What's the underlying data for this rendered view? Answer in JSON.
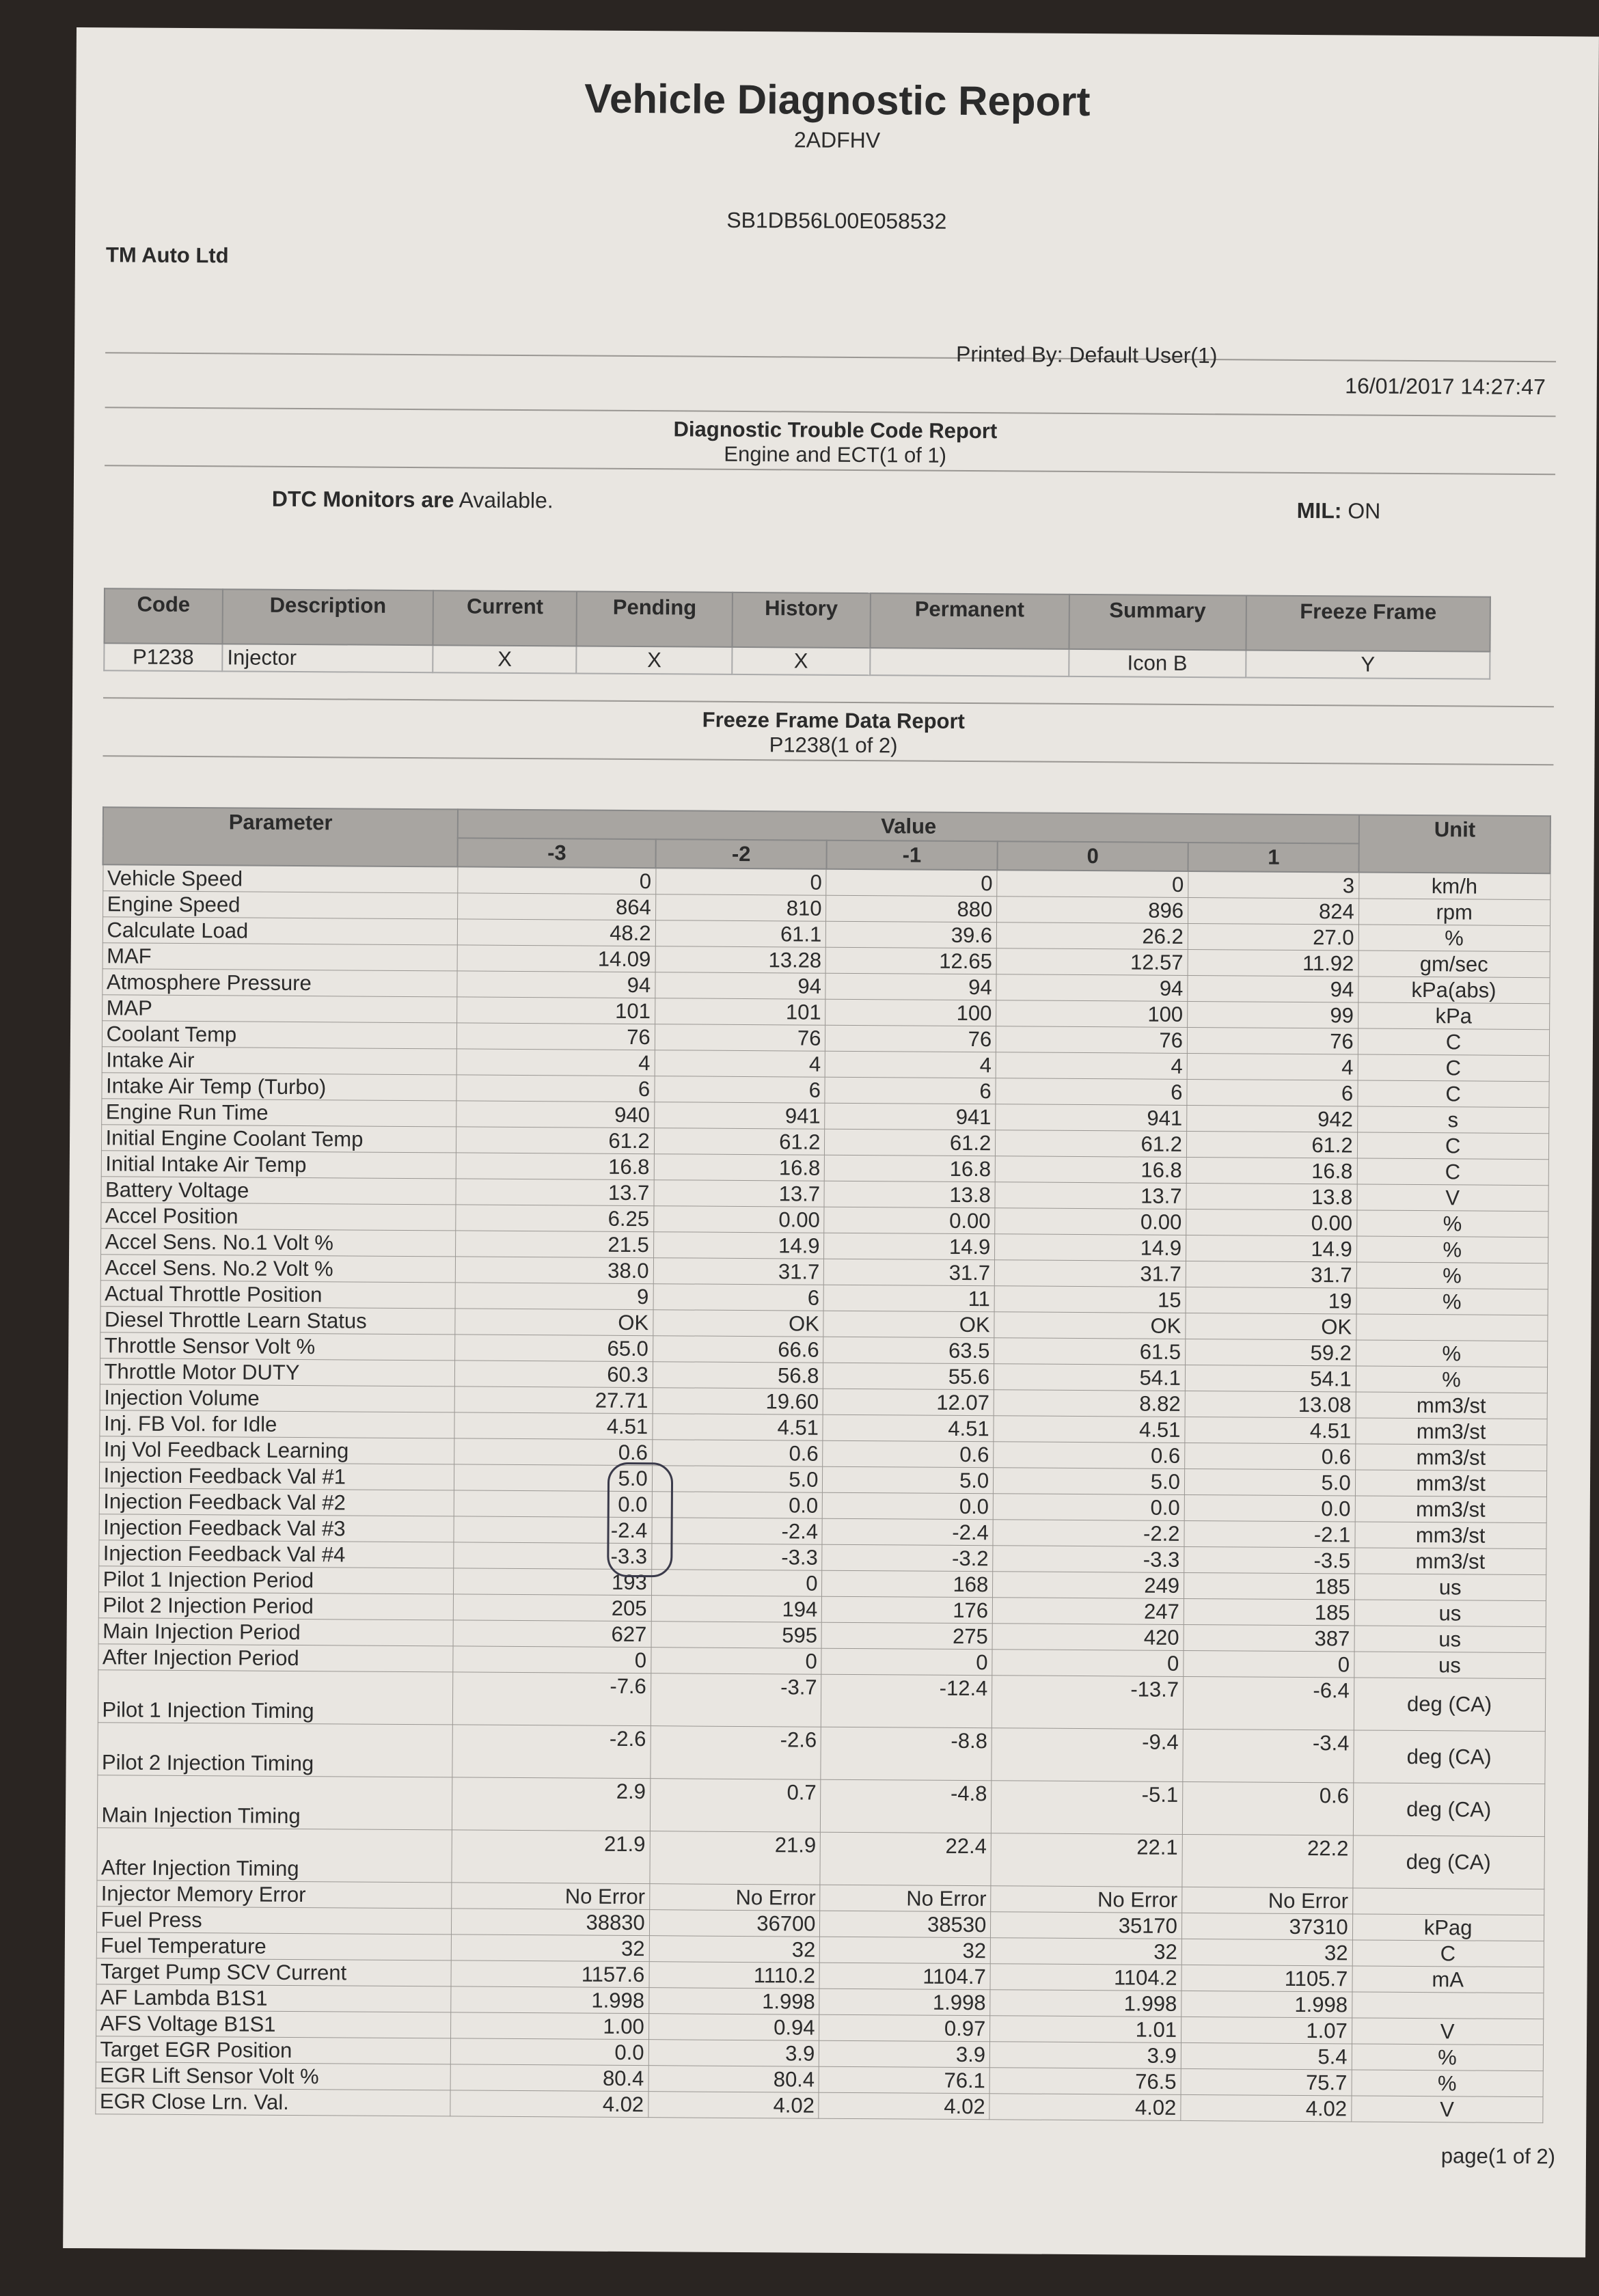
{
  "report": {
    "title": "Vehicle Diagnostic Report",
    "code": "2ADFHV",
    "vin": "SB1DB56L00E058532",
    "company": "TM Auto Ltd",
    "printed_by": "Printed By: Default User(1)",
    "datetime": "16/01/2017 14:27:47",
    "page": "page(1 of 2)"
  },
  "dtc_section": {
    "title": "Diagnostic Trouble Code Report",
    "subtitle": "Engine and ECT(1 of 1)",
    "monitors_label": "DTC Monitors are",
    "monitors_value": "Available.",
    "mil_label": "MIL:",
    "mil_value": "ON",
    "headers": [
      "Code",
      "Description",
      "Current",
      "Pending",
      "History",
      "Permanent",
      "Summary",
      "Freeze Frame"
    ],
    "rows": [
      [
        "P1238",
        "Injector",
        "X",
        "X",
        "X",
        "",
        "Icon B",
        "Y"
      ]
    ]
  },
  "freeze_frame": {
    "title": "Freeze Frame Data Report",
    "subtitle": "P1238(1 of 2)",
    "header_parameter": "Parameter",
    "header_value": "Value",
    "header_unit": "Unit",
    "frames": [
      "-3",
      "-2",
      "-1",
      "0",
      "1"
    ],
    "rows": [
      {
        "p": "Vehicle Speed",
        "v": [
          "0",
          "0",
          "0",
          "0",
          "3"
        ],
        "u": "km/h"
      },
      {
        "p": "Engine Speed",
        "v": [
          "864",
          "810",
          "880",
          "896",
          "824"
        ],
        "u": "rpm"
      },
      {
        "p": "Calculate Load",
        "v": [
          "48.2",
          "61.1",
          "39.6",
          "26.2",
          "27.0"
        ],
        "u": "%"
      },
      {
        "p": "MAF",
        "v": [
          "14.09",
          "13.28",
          "12.65",
          "12.57",
          "11.92"
        ],
        "u": "gm/sec"
      },
      {
        "p": "Atmosphere Pressure",
        "v": [
          "94",
          "94",
          "94",
          "94",
          "94"
        ],
        "u": "kPa(abs)"
      },
      {
        "p": "MAP",
        "v": [
          "101",
          "101",
          "100",
          "100",
          "99"
        ],
        "u": "kPa"
      },
      {
        "p": "Coolant Temp",
        "v": [
          "76",
          "76",
          "76",
          "76",
          "76"
        ],
        "u": "C"
      },
      {
        "p": "Intake Air",
        "v": [
          "4",
          "4",
          "4",
          "4",
          "4"
        ],
        "u": "C"
      },
      {
        "p": "Intake Air Temp (Turbo)",
        "v": [
          "6",
          "6",
          "6",
          "6",
          "6"
        ],
        "u": "C"
      },
      {
        "p": "Engine Run Time",
        "v": [
          "940",
          "941",
          "941",
          "941",
          "942"
        ],
        "u": "s"
      },
      {
        "p": "Initial Engine Coolant Temp",
        "v": [
          "61.2",
          "61.2",
          "61.2",
          "61.2",
          "61.2"
        ],
        "u": "C"
      },
      {
        "p": "Initial Intake Air Temp",
        "v": [
          "16.8",
          "16.8",
          "16.8",
          "16.8",
          "16.8"
        ],
        "u": "C"
      },
      {
        "p": "Battery Voltage",
        "v": [
          "13.7",
          "13.7",
          "13.8",
          "13.7",
          "13.8"
        ],
        "u": "V"
      },
      {
        "p": "Accel Position",
        "v": [
          "6.25",
          "0.00",
          "0.00",
          "0.00",
          "0.00"
        ],
        "u": "%"
      },
      {
        "p": "Accel Sens. No.1 Volt %",
        "v": [
          "21.5",
          "14.9",
          "14.9",
          "14.9",
          "14.9"
        ],
        "u": "%"
      },
      {
        "p": "Accel Sens. No.2 Volt %",
        "v": [
          "38.0",
          "31.7",
          "31.7",
          "31.7",
          "31.7"
        ],
        "u": "%"
      },
      {
        "p": "Actual Throttle Position",
        "v": [
          "9",
          "6",
          "11",
          "15",
          "19"
        ],
        "u": "%"
      },
      {
        "p": "Diesel Throttle Learn Status",
        "v": [
          "OK",
          "OK",
          "OK",
          "OK",
          "OK"
        ],
        "u": ""
      },
      {
        "p": "Throttle Sensor Volt %",
        "v": [
          "65.0",
          "66.6",
          "63.5",
          "61.5",
          "59.2"
        ],
        "u": "%"
      },
      {
        "p": "Throttle Motor DUTY",
        "v": [
          "60.3",
          "56.8",
          "55.6",
          "54.1",
          "54.1"
        ],
        "u": "%"
      },
      {
        "p": "Injection Volume",
        "v": [
          "27.71",
          "19.60",
          "12.07",
          "8.82",
          "13.08"
        ],
        "u": "mm3/st"
      },
      {
        "p": "Inj. FB Vol. for Idle",
        "v": [
          "4.51",
          "4.51",
          "4.51",
          "4.51",
          "4.51"
        ],
        "u": "mm3/st"
      },
      {
        "p": "Inj Vol Feedback Learning",
        "v": [
          "0.6",
          "0.6",
          "0.6",
          "0.6",
          "0.6"
        ],
        "u": "mm3/st"
      },
      {
        "p": "Injection Feedback Val #1",
        "v": [
          "5.0",
          "5.0",
          "5.0",
          "5.0",
          "5.0"
        ],
        "u": "mm3/st"
      },
      {
        "p": "Injection Feedback Val #2",
        "v": [
          "0.0",
          "0.0",
          "0.0",
          "0.0",
          "0.0"
        ],
        "u": "mm3/st"
      },
      {
        "p": "Injection Feedback Val #3",
        "v": [
          "-2.4",
          "-2.4",
          "-2.4",
          "-2.2",
          "-2.1"
        ],
        "u": "mm3/st"
      },
      {
        "p": "Injection Feedback Val #4",
        "v": [
          "-3.3",
          "-3.3",
          "-3.2",
          "-3.3",
          "-3.5"
        ],
        "u": "mm3/st"
      },
      {
        "p": "Pilot 1 Injection Period",
        "v": [
          "193",
          "0",
          "168",
          "249",
          "185"
        ],
        "u": "us"
      },
      {
        "p": "Pilot 2 Injection Period",
        "v": [
          "205",
          "194",
          "176",
          "247",
          "185"
        ],
        "u": "us"
      },
      {
        "p": "Main Injection Period",
        "v": [
          "627",
          "595",
          "275",
          "420",
          "387"
        ],
        "u": "us"
      },
      {
        "p": "After Injection Period",
        "v": [
          "0",
          "0",
          "0",
          "0",
          "0"
        ],
        "u": "us"
      },
      {
        "p": "Pilot 1 Injection Timing",
        "v": [
          "-7.6",
          "-3.7",
          "-12.4",
          "-13.7",
          "-6.4"
        ],
        "u": "deg (CA)",
        "tall": true
      },
      {
        "p": "Pilot 2 Injection Timing",
        "v": [
          "-2.6",
          "-2.6",
          "-8.8",
          "-9.4",
          "-3.4"
        ],
        "u": "deg (CA)",
        "tall": true
      },
      {
        "p": "Main Injection Timing",
        "v": [
          "2.9",
          "0.7",
          "-4.8",
          "-5.1",
          "0.6"
        ],
        "u": "deg (CA)",
        "tall": true
      },
      {
        "p": "After Injection Timing",
        "v": [
          "21.9",
          "21.9",
          "22.4",
          "22.1",
          "22.2"
        ],
        "u": "deg (CA)",
        "tall": true
      },
      {
        "p": "Injector Memory Error",
        "v": [
          "No Error",
          "No Error",
          "No Error",
          "No Error",
          "No Error"
        ],
        "u": ""
      },
      {
        "p": "Fuel Press",
        "v": [
          "38830",
          "36700",
          "38530",
          "35170",
          "37310"
        ],
        "u": "kPag"
      },
      {
        "p": "Fuel Temperature",
        "v": [
          "32",
          "32",
          "32",
          "32",
          "32"
        ],
        "u": "C"
      },
      {
        "p": "Target Pump SCV Current",
        "v": [
          "1157.6",
          "1110.2",
          "1104.7",
          "1104.2",
          "1105.7"
        ],
        "u": "mA"
      },
      {
        "p": "AF Lambda B1S1",
        "v": [
          "1.998",
          "1.998",
          "1.998",
          "1.998",
          "1.998"
        ],
        "u": ""
      },
      {
        "p": "AFS Voltage B1S1",
        "v": [
          "1.00",
          "0.94",
          "0.97",
          "1.01",
          "1.07"
        ],
        "u": "V"
      },
      {
        "p": "Target EGR Position",
        "v": [
          "0.0",
          "3.9",
          "3.9",
          "3.9",
          "5.4"
        ],
        "u": "%"
      },
      {
        "p": "EGR Lift Sensor Volt %",
        "v": [
          "80.4",
          "80.4",
          "76.1",
          "76.5",
          "75.7"
        ],
        "u": "%"
      },
      {
        "p": "EGR Close Lrn. Val.",
        "v": [
          "4.02",
          "4.02",
          "4.02",
          "4.02",
          "4.02"
        ],
        "u": "V"
      }
    ]
  }
}
